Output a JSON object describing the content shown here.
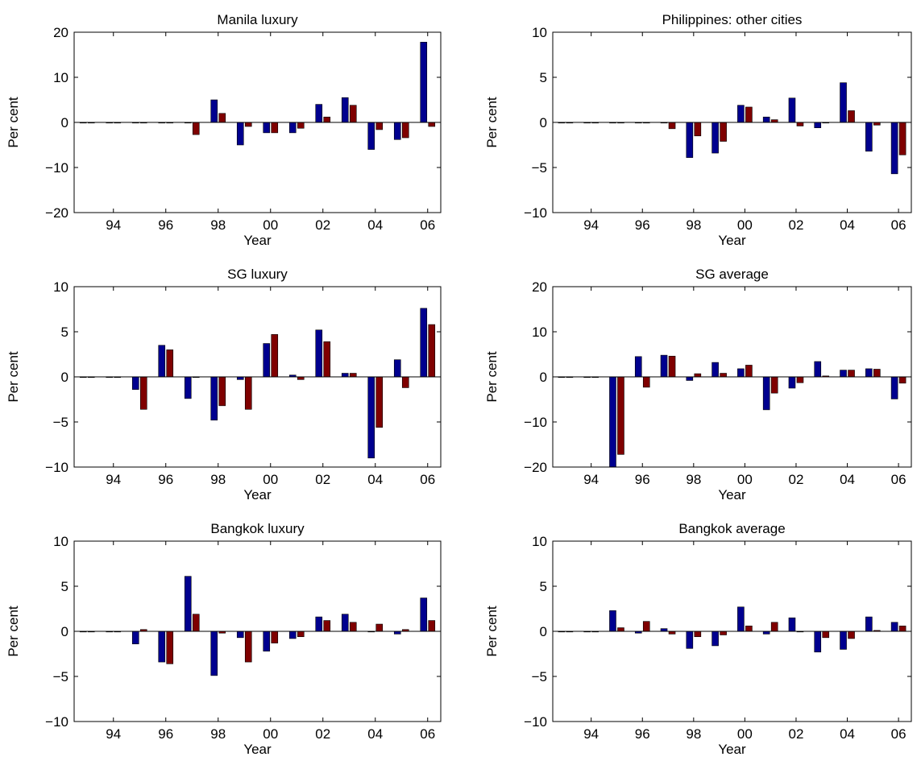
{
  "figure": {
    "colors": {
      "series_a": "#00008f",
      "series_b": "#7f0000",
      "axes": "#000000",
      "background": "#ffffff"
    }
  },
  "chart_data": [
    {
      "type": "bar",
      "title": "Manila luxury",
      "xlabel": "Year",
      "ylabel": "Per cent",
      "ylim": [
        -20,
        20
      ],
      "yticks": [
        "−20",
        "−10",
        "0",
        "10",
        "20"
      ],
      "ytick_values": [
        -20,
        -10,
        0,
        10,
        20
      ],
      "categories": [
        "93",
        "94",
        "95",
        "96",
        "97",
        "98",
        "99",
        "00",
        "01",
        "02",
        "03",
        "04",
        "05",
        "06"
      ],
      "xtick_labels": [
        "94",
        "96",
        "98",
        "00",
        "02",
        "04",
        "06"
      ],
      "series": [
        {
          "values": [
            0,
            0,
            0,
            0,
            0,
            5.0,
            -5.0,
            -2.3,
            -2.3,
            4.0,
            5.5,
            -6.0,
            -3.8,
            17.8
          ]
        },
        {
          "values": [
            0,
            0,
            0,
            0,
            -2.7,
            2.0,
            -0.9,
            -2.3,
            -1.3,
            1.2,
            3.8,
            -1.6,
            -3.4,
            -0.9
          ]
        }
      ]
    },
    {
      "type": "bar",
      "title": "Philippines: other cities",
      "xlabel": "Year",
      "ylabel": "Per cent",
      "ylim": [
        -10,
        10
      ],
      "yticks": [
        "−10",
        "−5",
        "0",
        "5",
        "10"
      ],
      "ytick_values": [
        -10,
        -5,
        0,
        5,
        10
      ],
      "categories": [
        "93",
        "94",
        "95",
        "96",
        "97",
        "98",
        "99",
        "00",
        "01",
        "02",
        "03",
        "04",
        "05",
        "06"
      ],
      "xtick_labels": [
        "94",
        "96",
        "98",
        "00",
        "02",
        "04",
        "06"
      ],
      "series": [
        {
          "values": [
            0,
            0,
            0,
            0,
            0,
            -3.9,
            -3.4,
            1.9,
            0.6,
            2.7,
            -0.6,
            4.4,
            -3.2,
            -5.7
          ]
        },
        {
          "values": [
            0,
            0,
            0,
            0,
            -0.7,
            -1.5,
            -2.1,
            1.7,
            0.3,
            -0.4,
            0,
            1.3,
            -0.3,
            -3.6
          ]
        }
      ]
    },
    {
      "type": "bar",
      "title": "SG luxury",
      "xlabel": "Year",
      "ylabel": "Per cent",
      "ylim": [
        -10,
        10
      ],
      "yticks": [
        "−10",
        "−5",
        "0",
        "5",
        "10"
      ],
      "ytick_values": [
        -10,
        -5,
        0,
        5,
        10
      ],
      "categories": [
        "93",
        "94",
        "95",
        "96",
        "97",
        "98",
        "99",
        "00",
        "01",
        "02",
        "03",
        "04",
        "05",
        "06"
      ],
      "xtick_labels": [
        "94",
        "96",
        "98",
        "00",
        "02",
        "04",
        "06"
      ],
      "series": [
        {
          "values": [
            0,
            0,
            -1.4,
            3.5,
            -2.4,
            -4.8,
            -0.3,
            3.7,
            0.2,
            5.2,
            0.4,
            -9.0,
            1.9,
            7.6
          ]
        },
        {
          "values": [
            0,
            0,
            -3.6,
            3.0,
            0,
            -3.2,
            -3.6,
            4.7,
            -0.3,
            3.9,
            0.4,
            -5.6,
            -1.2,
            5.8
          ]
        }
      ]
    },
    {
      "type": "bar",
      "title": "SG average",
      "xlabel": "Year",
      "ylabel": "Per cent",
      "ylim": [
        -20,
        20
      ],
      "yticks": [
        "−20",
        "−10",
        "0",
        "10",
        "20"
      ],
      "ytick_values": [
        -20,
        -10,
        0,
        10,
        20
      ],
      "categories": [
        "93",
        "94",
        "95",
        "96",
        "97",
        "98",
        "99",
        "00",
        "01",
        "02",
        "03",
        "04",
        "05",
        "06"
      ],
      "xtick_labels": [
        "94",
        "96",
        "98",
        "00",
        "02",
        "04",
        "06"
      ],
      "series": [
        {
          "values": [
            0,
            0,
            -20.0,
            4.5,
            4.8,
            -0.8,
            3.2,
            1.8,
            -7.3,
            -2.5,
            3.4,
            1.5,
            1.8,
            -4.9
          ]
        },
        {
          "values": [
            0,
            0,
            -17.2,
            -2.3,
            4.6,
            0.7,
            0.8,
            2.6,
            -3.6,
            -1.3,
            0.2,
            1.5,
            1.7,
            -1.4
          ]
        }
      ]
    },
    {
      "type": "bar",
      "title": "Bangkok luxury",
      "xlabel": "Year",
      "ylabel": "Per cent",
      "ylim": [
        -10,
        10
      ],
      "yticks": [
        "−10",
        "−5",
        "0",
        "5",
        "10"
      ],
      "ytick_values": [
        -10,
        -5,
        0,
        5,
        10
      ],
      "categories": [
        "93",
        "94",
        "95",
        "96",
        "97",
        "98",
        "99",
        "00",
        "01",
        "02",
        "03",
        "04",
        "05",
        "06"
      ],
      "xtick_labels": [
        "94",
        "96",
        "98",
        "00",
        "02",
        "04",
        "06"
      ],
      "series": [
        {
          "values": [
            0,
            0,
            -1.4,
            -3.4,
            6.1,
            -4.9,
            -0.7,
            -2.2,
            -0.8,
            1.6,
            1.9,
            0,
            -0.3,
            3.7
          ]
        },
        {
          "values": [
            0,
            0,
            0.2,
            -3.6,
            1.9,
            -0.2,
            -3.4,
            -1.3,
            -0.6,
            1.2,
            1.0,
            0.8,
            0.2,
            1.2
          ]
        }
      ]
    },
    {
      "type": "bar",
      "title": "Bangkok average",
      "xlabel": "Year",
      "ylabel": "Per cent",
      "ylim": [
        -10,
        10
      ],
      "yticks": [
        "−10",
        "−5",
        "0",
        "5",
        "10"
      ],
      "ytick_values": [
        -10,
        -5,
        0,
        5,
        10
      ],
      "categories": [
        "93",
        "94",
        "95",
        "96",
        "97",
        "98",
        "99",
        "00",
        "01",
        "02",
        "03",
        "04",
        "05",
        "06"
      ],
      "xtick_labels": [
        "94",
        "96",
        "98",
        "00",
        "02",
        "04",
        "06"
      ],
      "series": [
        {
          "values": [
            0,
            0,
            2.3,
            -0.2,
            0.3,
            -1.9,
            -1.6,
            2.7,
            -0.3,
            1.5,
            -2.3,
            -2.0,
            1.6,
            1.0
          ]
        },
        {
          "values": [
            0,
            0,
            0.4,
            1.1,
            -0.3,
            -0.6,
            -0.4,
            0.6,
            1.0,
            0,
            -0.7,
            -0.8,
            0.1,
            0.6
          ]
        }
      ]
    }
  ]
}
